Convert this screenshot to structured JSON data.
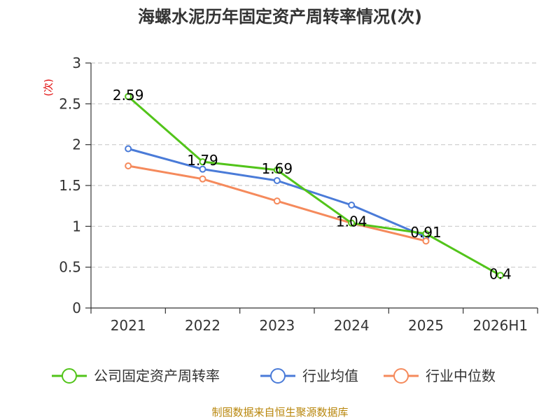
{
  "chart_data": {
    "type": "line",
    "title": "海螺水泥历年固定资产周转率情况(次)",
    "ylabel": "(次)",
    "xlabel": "",
    "categories": [
      "2021",
      "2022",
      "2023",
      "2024",
      "2025",
      "2026H1"
    ],
    "yticks": [
      "0",
      "0.5",
      "1",
      "1.5",
      "2",
      "2.5",
      "3"
    ],
    "ylim": [
      0,
      3
    ],
    "grid": true,
    "legend_position": "bottom",
    "series": [
      {
        "name": "公司固定资产周转率",
        "color": "#52c41a",
        "values": [
          2.59,
          1.79,
          1.69,
          1.04,
          0.91,
          0.4
        ],
        "labels": [
          "2.59",
          "1.79",
          "1.69",
          "1.04",
          "0.91",
          "0.4"
        ]
      },
      {
        "name": "行业均值",
        "color": "#4a7bd8",
        "values": [
          1.95,
          1.7,
          1.56,
          1.26,
          0.87,
          null
        ]
      },
      {
        "name": "行业中位数",
        "color": "#f58a5c",
        "values": [
          1.74,
          1.58,
          1.31,
          1.04,
          0.82,
          null
        ]
      }
    ],
    "source": "制图数据来自恒生聚源数据库"
  }
}
